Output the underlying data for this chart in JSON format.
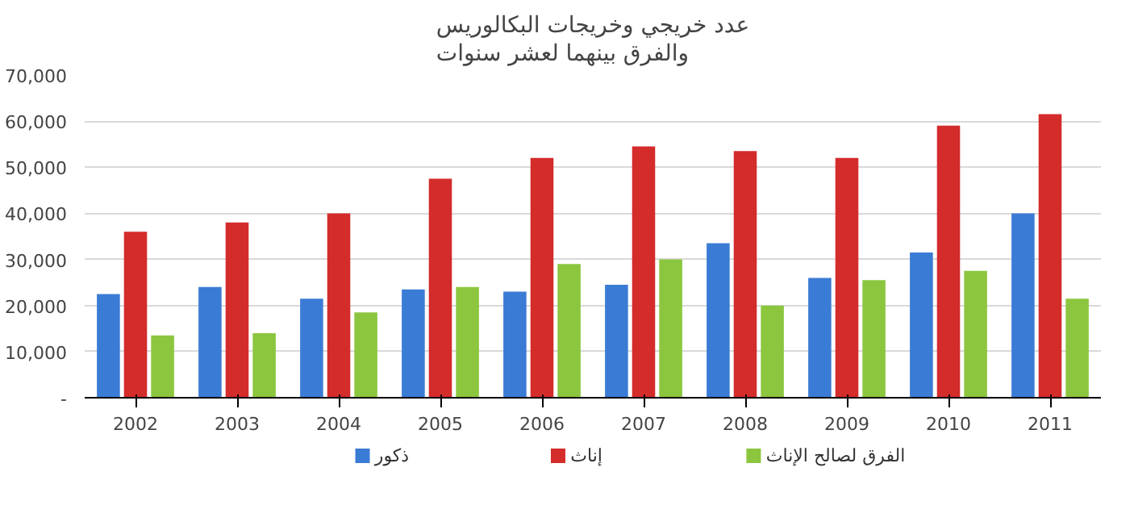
{
  "chart_data": {
    "type": "bar",
    "title": "عدد خريجي وخريجات البكالوريس\nوالفرق بينهما لعشر سنوات",
    "categories": [
      "2002",
      "2003",
      "2004",
      "2005",
      "2006",
      "2007",
      "2008",
      "2009",
      "2010",
      "2011"
    ],
    "series": [
      {
        "name": "ذكور",
        "color": "#3a7bd5",
        "values": [
          22500,
          24000,
          21500,
          23500,
          23000,
          24500,
          33500,
          26000,
          31500,
          40000
        ]
      },
      {
        "name": "إناث",
        "color": "#d42b2b",
        "values": [
          36000,
          38000,
          40000,
          47500,
          52000,
          54500,
          53500,
          52000,
          59000,
          61500
        ]
      },
      {
        "name": "الفرق لصالح الإناث",
        "color": "#8cc63f",
        "values": [
          13500,
          14000,
          18500,
          24000,
          29000,
          30000,
          20000,
          25500,
          27500,
          21500
        ]
      }
    ],
    "ylim": [
      0,
      70000
    ],
    "yticks": [
      {
        "value": 0,
        "label": "-"
      },
      {
        "value": 10000,
        "label": "10,000"
      },
      {
        "value": 20000,
        "label": "20,000"
      },
      {
        "value": 30000,
        "label": "30,000"
      },
      {
        "value": 40000,
        "label": "40,000"
      },
      {
        "value": 50000,
        "label": "50,000"
      },
      {
        "value": 60000,
        "label": "60,000"
      },
      {
        "value": 70000,
        "label": "70,000"
      }
    ],
    "grid": "y",
    "legend": "bottom"
  }
}
